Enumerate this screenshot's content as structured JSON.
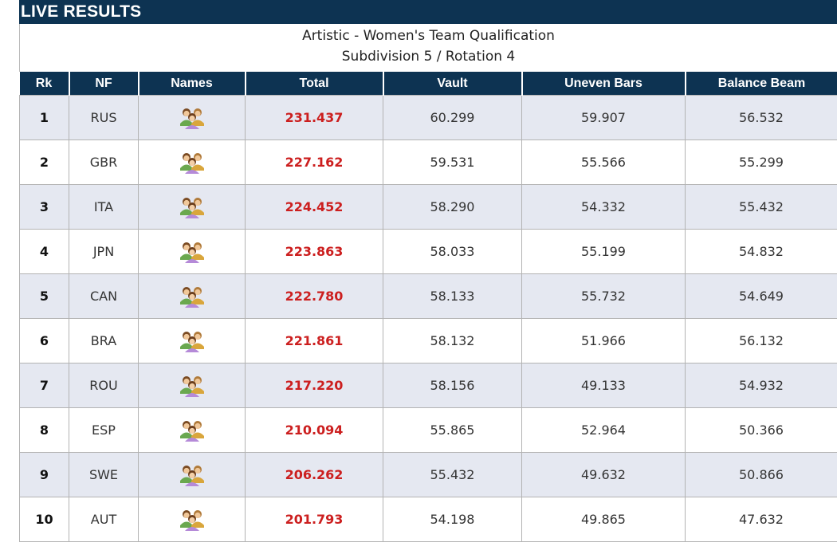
{
  "banner": {
    "title": "LIVE RESULTS"
  },
  "event": {
    "title": "Artistic - Women's Team Qualification",
    "subtitle": "Subdivision 5 / Rotation 4"
  },
  "table": {
    "headers": [
      "Rk",
      "NF",
      "Names",
      "Total",
      "Vault",
      "Uneven Bars",
      "Balance Beam"
    ],
    "rows": [
      {
        "rank": "1",
        "nf": "RUS",
        "total": "231.437",
        "vault": "60.299",
        "bars": "59.907",
        "beam": "56.532"
      },
      {
        "rank": "2",
        "nf": "GBR",
        "total": "227.162",
        "vault": "59.531",
        "bars": "55.566",
        "beam": "55.299"
      },
      {
        "rank": "3",
        "nf": "ITA",
        "total": "224.452",
        "vault": "58.290",
        "bars": "54.332",
        "beam": "55.432"
      },
      {
        "rank": "4",
        "nf": "JPN",
        "total": "223.863",
        "vault": "58.033",
        "bars": "55.199",
        "beam": "54.832"
      },
      {
        "rank": "5",
        "nf": "CAN",
        "total": "222.780",
        "vault": "58.133",
        "bars": "55.732",
        "beam": "54.649"
      },
      {
        "rank": "6",
        "nf": "BRA",
        "total": "221.861",
        "vault": "58.132",
        "bars": "51.966",
        "beam": "56.132"
      },
      {
        "rank": "7",
        "nf": "ROU",
        "total": "217.220",
        "vault": "58.156",
        "bars": "49.133",
        "beam": "54.932"
      },
      {
        "rank": "8",
        "nf": "ESP",
        "total": "210.094",
        "vault": "55.865",
        "bars": "52.964",
        "beam": "50.366"
      },
      {
        "rank": "9",
        "nf": "SWE",
        "total": "206.262",
        "vault": "55.432",
        "bars": "49.632",
        "beam": "50.866"
      },
      {
        "rank": "10",
        "nf": "AUT",
        "total": "201.793",
        "vault": "54.198",
        "bars": "49.865",
        "beam": "47.632"
      }
    ]
  },
  "icons": {
    "names": "team-members-icon"
  },
  "colors": {
    "header_bg": "#0d3352",
    "total_text": "#cc1f1f",
    "row_alt": "#e5e8f1"
  }
}
